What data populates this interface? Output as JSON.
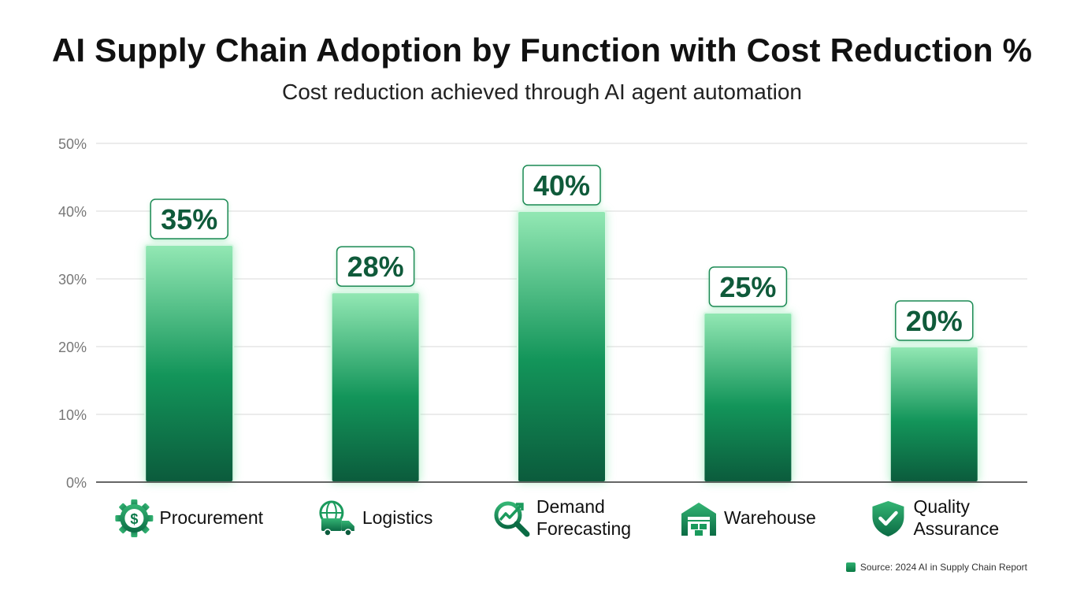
{
  "chart_data": {
    "type": "bar",
    "title": "AI Supply Chain Adoption by Function with Cost Reduction %",
    "subtitle": "Cost reduction achieved through AI agent automation",
    "categories": [
      "Procurement",
      "Logistics",
      "Demand Forecasting",
      "Warehouse",
      "Quality Assurance"
    ],
    "values": [
      35,
      28,
      40,
      25,
      20
    ],
    "value_labels": [
      "35%",
      "28%",
      "40%",
      "25%",
      "20%"
    ],
    "category_lines": [
      [
        "Procurement"
      ],
      [
        "Logistics"
      ],
      [
        "Demand",
        "Forecasting"
      ],
      [
        "Warehouse"
      ],
      [
        "Quality",
        "Assurance"
      ]
    ],
    "category_icons": [
      "dollar-gear-icon",
      "globe-truck-icon",
      "trend-magnifier-icon",
      "warehouse-icon",
      "shield-check-icon"
    ],
    "ylim": [
      0,
      50
    ],
    "yticks": [
      0,
      10,
      20,
      30,
      40,
      50
    ],
    "ytick_labels": [
      "0%",
      "10%",
      "20%",
      "30%",
      "40%",
      "50%"
    ],
    "grid": true,
    "bar_color_top": "#8fe6b0",
    "bar_color_bottom": "#0b5b3c",
    "label_color": "#0f5a3a",
    "source": "Source: 2024 AI in Supply Chain Report"
  }
}
